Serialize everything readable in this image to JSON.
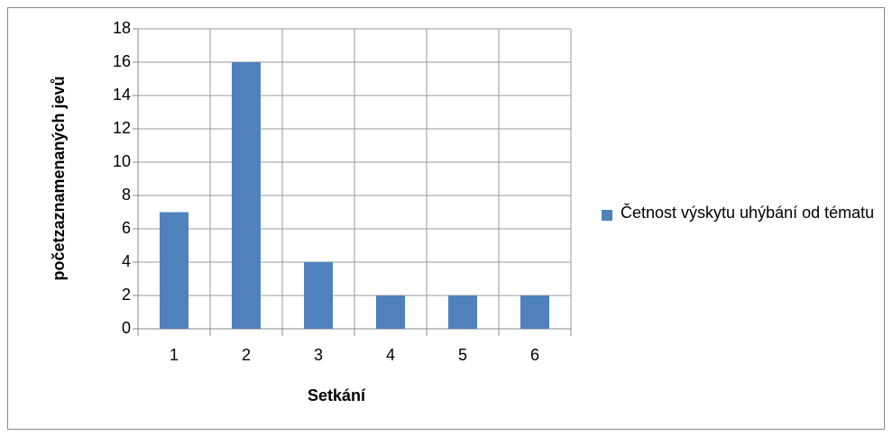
{
  "chart_data": {
    "type": "bar",
    "categories": [
      "1",
      "2",
      "3",
      "4",
      "5",
      "6"
    ],
    "series": [
      {
        "name": "Četnost výskytu uhýbání od tématu",
        "color": "#4f81bd",
        "values": [
          7,
          16,
          4,
          2,
          2,
          2
        ]
      }
    ],
    "ylim": [
      0,
      18
    ],
    "yticks": [
      0,
      2,
      4,
      6,
      8,
      10,
      12,
      14,
      16,
      18
    ],
    "xlabel": "Setkání",
    "ylabel": "početzaznamenaných jevů",
    "grid": true,
    "legend": "right"
  }
}
